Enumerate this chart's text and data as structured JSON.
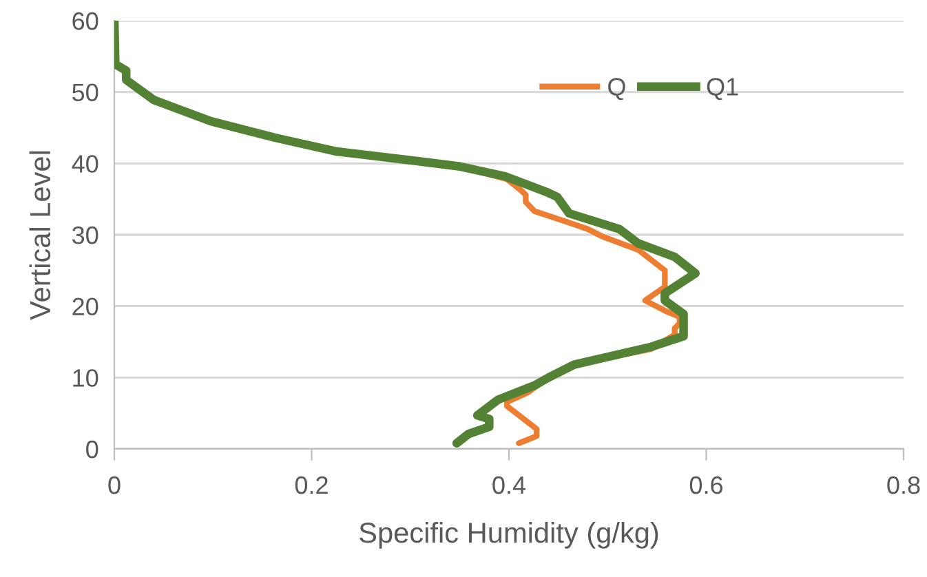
{
  "chart_data": {
    "type": "line",
    "xlabel": "Specific Humidity (g/kg)",
    "ylabel": "Vertical Level",
    "xlim": [
      0,
      0.8
    ],
    "xticks": [
      0,
      0.2,
      0.4,
      0.6,
      0.8
    ],
    "ylim": [
      0,
      60
    ],
    "yticks": [
      0,
      10,
      20,
      30,
      40,
      50,
      60
    ],
    "grid": "y",
    "legend": "top right",
    "line_style": "solid",
    "marker": "none",
    "series": [
      {
        "name": "Q",
        "color": "#ed7d31",
        "x": [
          0.41,
          0.428,
          0.428,
          0.398,
          0.398,
          0.419,
          0.44,
          0.466,
          0.544,
          0.568,
          0.568,
          0.573,
          0.573,
          0.559,
          0.538,
          0.558,
          0.558,
          0.531,
          0.494,
          0.48,
          0.461,
          0.426,
          0.417,
          0.417,
          0.41,
          0.398,
          0.349
        ],
        "values": [
          0.8,
          1.8,
          2.8,
          6,
          6.6,
          7.9,
          10,
          11.8,
          14,
          16,
          16.9,
          17.6,
          18.5,
          19.3,
          20.8,
          22.7,
          25,
          27.9,
          29.8,
          30.8,
          31.7,
          33.3,
          34.6,
          35.6,
          36.5,
          37.8,
          39.6
        ]
      },
      {
        "name": "Q1",
        "color": "#548235",
        "x": [
          0.347,
          0.359,
          0.38,
          0.38,
          0.368,
          0.389,
          0.426,
          0.44,
          0.466,
          0.544,
          0.577,
          0.577,
          0.558,
          0.558,
          0.589,
          0.568,
          0.531,
          0.512,
          0.461,
          0.449,
          0.438,
          0.396,
          0.349,
          0.303,
          0.224,
          0.163,
          0.098,
          0.04,
          0.012,
          0.012,
          0.001,
          0
        ],
        "values": [
          0.8,
          2.1,
          3.1,
          4.2,
          4.7,
          6.9,
          8.9,
          10,
          11.8,
          14.3,
          15.8,
          18.9,
          20.8,
          21.8,
          24.6,
          26.9,
          28.8,
          30.8,
          33,
          35.3,
          36,
          38.2,
          39.6,
          40.4,
          41.7,
          43.6,
          45.9,
          48.9,
          51.7,
          53,
          53.9,
          60
        ]
      }
    ]
  }
}
